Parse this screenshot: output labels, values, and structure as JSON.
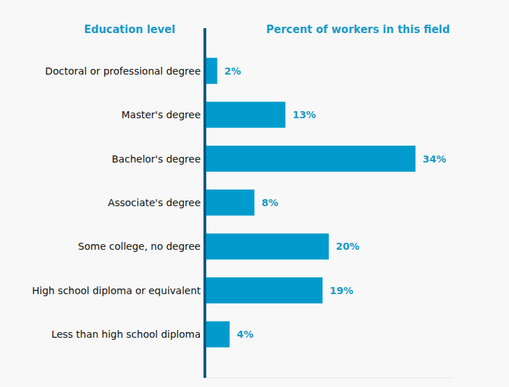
{
  "chart_data": {
    "type": "bar",
    "orientation": "horizontal",
    "y_label": "Education level",
    "x_label": "Percent of workers in this field",
    "categories": [
      "Doctoral or professional degree",
      "Master's degree",
      "Bachelor's degree",
      "Associate's degree",
      "Some college, no degree",
      "High school diploma or equivalent",
      "Less than high school diploma"
    ],
    "values": [
      2,
      13,
      34,
      8,
      20,
      19,
      4
    ],
    "value_labels": [
      "2%",
      "13%",
      "34%",
      "8%",
      "20%",
      "19%",
      "4%"
    ],
    "color": "#009bcd",
    "xlim": [
      0,
      40
    ],
    "grid": false,
    "data_labels": true,
    "tick_labels": "y"
  }
}
